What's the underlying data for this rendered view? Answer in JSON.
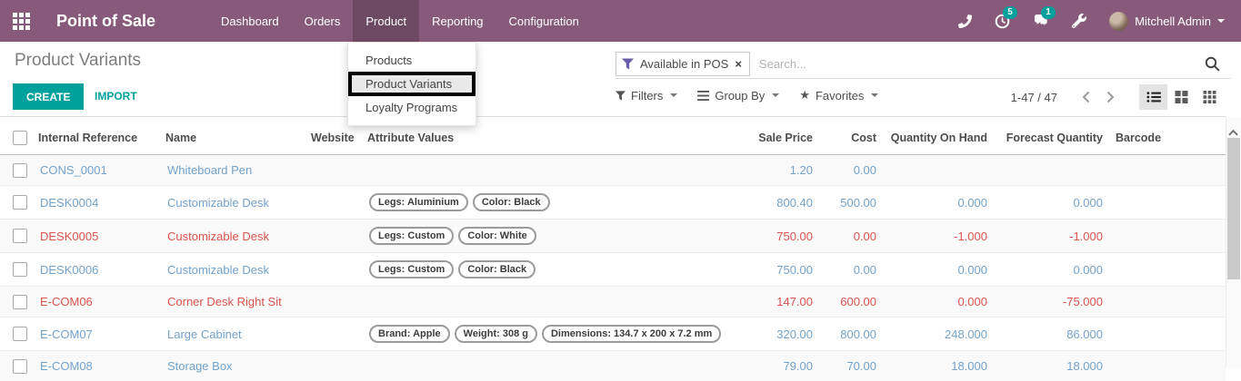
{
  "colors": {
    "navbar_bg": "#875A7B",
    "navbar_active_bg": "#6d4963",
    "accent_teal": "#00A09D",
    "link_blue": "#72a2cb",
    "danger_red": "#d9534f",
    "facet_funnel_purple": "#6a5caa"
  },
  "icons": {
    "star": "★",
    "facet_close": "×"
  },
  "navbar": {
    "app_title": "Point of Sale",
    "menu": [
      "Dashboard",
      "Orders",
      "Product",
      "Reporting",
      "Configuration"
    ],
    "active_menu": "Product",
    "activity_badge": "5",
    "message_badge": "1",
    "user_name": "Mitchell Admin"
  },
  "product_menu": {
    "items": [
      "Products",
      "Product Variants",
      "Loyalty Programs"
    ],
    "highlighted": "Product Variants"
  },
  "control_panel": {
    "breadcrumb": "Product Variants",
    "create_label": "CREATE",
    "import_label": "IMPORT",
    "search_facet": "Available in POS",
    "search_placeholder": "Search...",
    "filters_label": "Filters",
    "group_by_label": "Group By",
    "favorites_label": "Favorites",
    "pager": "1-47 / 47"
  },
  "table": {
    "headers": [
      "Internal Reference",
      "Name",
      "Website",
      "Attribute Values",
      "Sale Price",
      "Cost",
      "Quantity On Hand",
      "Forecast Quantity",
      "Barcode"
    ],
    "rows": [
      {
        "ref": "CONS_0001",
        "name": "Whiteboard Pen",
        "attributes": [],
        "sale_price": "1.20",
        "cost": "0.00",
        "qty_on_hand": "",
        "forecast": "",
        "barcode": "",
        "danger": false
      },
      {
        "ref": "DESK0004",
        "name": "Customizable Desk",
        "attributes": [
          "Legs: Aluminium",
          "Color: Black"
        ],
        "sale_price": "800.40",
        "cost": "500.00",
        "qty_on_hand": "0.000",
        "forecast": "0.000",
        "barcode": "",
        "danger": false
      },
      {
        "ref": "DESK0005",
        "name": "Customizable Desk",
        "attributes": [
          "Legs: Custom",
          "Color: White"
        ],
        "sale_price": "750.00",
        "cost": "0.00",
        "qty_on_hand": "-1.000",
        "forecast": "-1.000",
        "barcode": "",
        "danger": true
      },
      {
        "ref": "DESK0006",
        "name": "Customizable Desk",
        "attributes": [
          "Legs: Custom",
          "Color: Black"
        ],
        "sale_price": "750.00",
        "cost": "0.00",
        "qty_on_hand": "0.000",
        "forecast": "0.000",
        "barcode": "",
        "danger": false
      },
      {
        "ref": "E-COM06",
        "name": "Corner Desk Right Sit",
        "attributes": [],
        "sale_price": "147.00",
        "cost": "600.00",
        "qty_on_hand": "0.000",
        "forecast": "-75.000",
        "barcode": "",
        "danger": true
      },
      {
        "ref": "E-COM07",
        "name": "Large Cabinet",
        "attributes": [
          "Brand: Apple",
          "Weight: 308 g",
          "Dimensions: 134.7 x 200 x 7.2 mm"
        ],
        "sale_price": "320.00",
        "cost": "800.00",
        "qty_on_hand": "248.000",
        "forecast": "86.000",
        "barcode": "",
        "danger": false
      },
      {
        "ref": "E-COM08",
        "name": "Storage Box",
        "attributes": [],
        "sale_price": "79.00",
        "cost": "70.00",
        "qty_on_hand": "18.000",
        "forecast": "18.000",
        "barcode": "",
        "danger": false
      }
    ]
  }
}
